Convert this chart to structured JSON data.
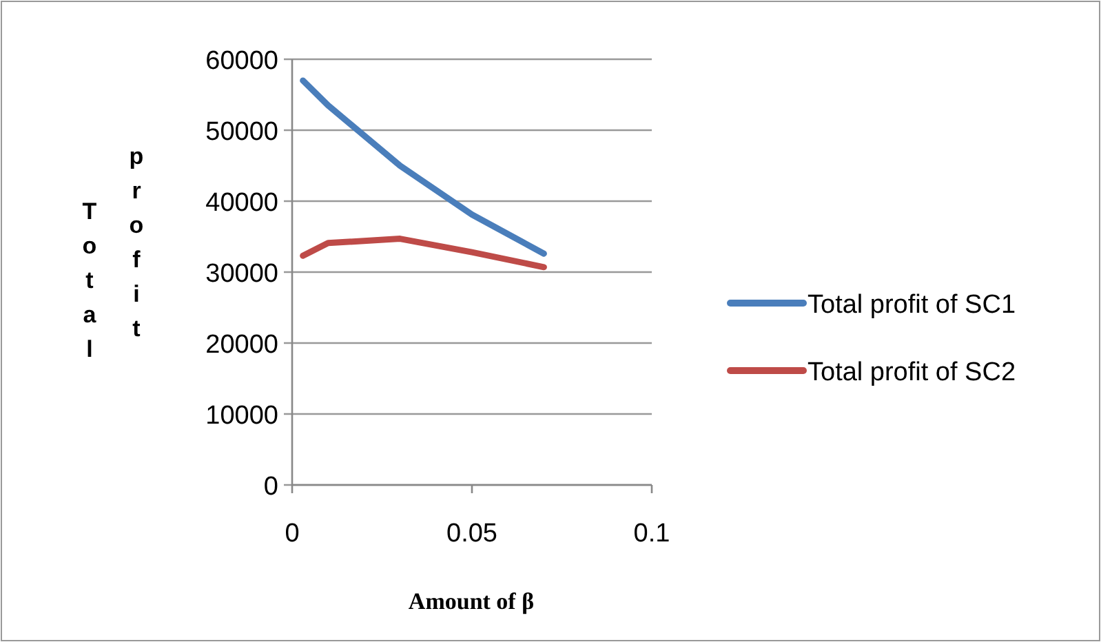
{
  "chart_data": {
    "type": "line",
    "xlabel": "Amount of β",
    "ylabel": "Total profit",
    "x": [
      0.003,
      0.01,
      0.03,
      0.05,
      0.07
    ],
    "series": [
      {
        "name": "Total profit of SC1",
        "color": "#4a7ebb",
        "values": [
          57000,
          53500,
          45000,
          38100,
          32600
        ]
      },
      {
        "name": "Total profit of SC2",
        "color": "#be4b48",
        "values": [
          32300,
          34100,
          34700,
          32800,
          30700
        ]
      }
    ],
    "xlim": [
      0,
      0.1
    ],
    "xticks": [
      0,
      0.05,
      0.1
    ],
    "ylim": [
      0,
      60000
    ],
    "yticks": [
      0,
      10000,
      20000,
      30000,
      40000,
      50000,
      60000
    ],
    "grid": "y",
    "legend": "right",
    "marker": "none",
    "line_style": "solid"
  }
}
